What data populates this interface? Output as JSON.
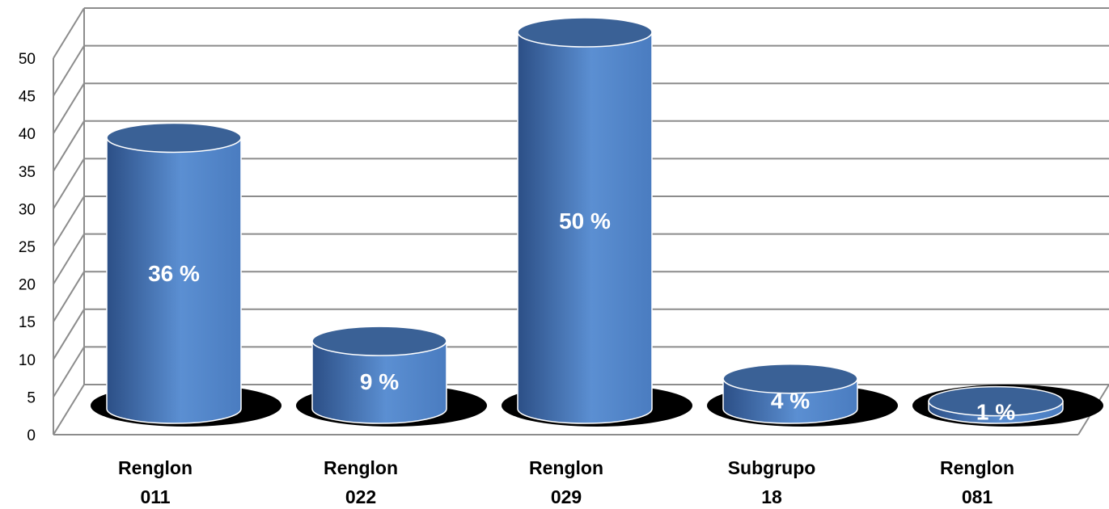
{
  "chart_data": {
    "type": "bar",
    "style": "3d-cylinder",
    "categories": [
      "Renglon 011",
      "Renglon 022",
      "Renglon 029",
      "Subgrupo 18",
      "Renglon 081"
    ],
    "category_lines": [
      [
        "Renglon",
        "011"
      ],
      [
        "Renglon",
        "022"
      ],
      [
        "Renglon",
        "029"
      ],
      [
        "Subgrupo",
        "18"
      ],
      [
        "Renglon",
        "081"
      ]
    ],
    "values": [
      36,
      9,
      50,
      4,
      1
    ],
    "data_labels": [
      "36 %",
      "9 %",
      "50 %",
      "4 %",
      "1 %"
    ],
    "yticks": [
      "0",
      "5",
      "10",
      "15",
      "20",
      "25",
      "30",
      "35",
      "40",
      "45",
      "50"
    ],
    "ylim": [
      0,
      50
    ],
    "grid": true,
    "legend": "none",
    "colors": {
      "bar_light": "#5b8fd2",
      "bar_mid": "#4a7cc0",
      "bar_dark": "#2c4f86",
      "bar_top": "#3a6196",
      "shadow": "#000000",
      "grid": "#8c8c8c"
    }
  }
}
